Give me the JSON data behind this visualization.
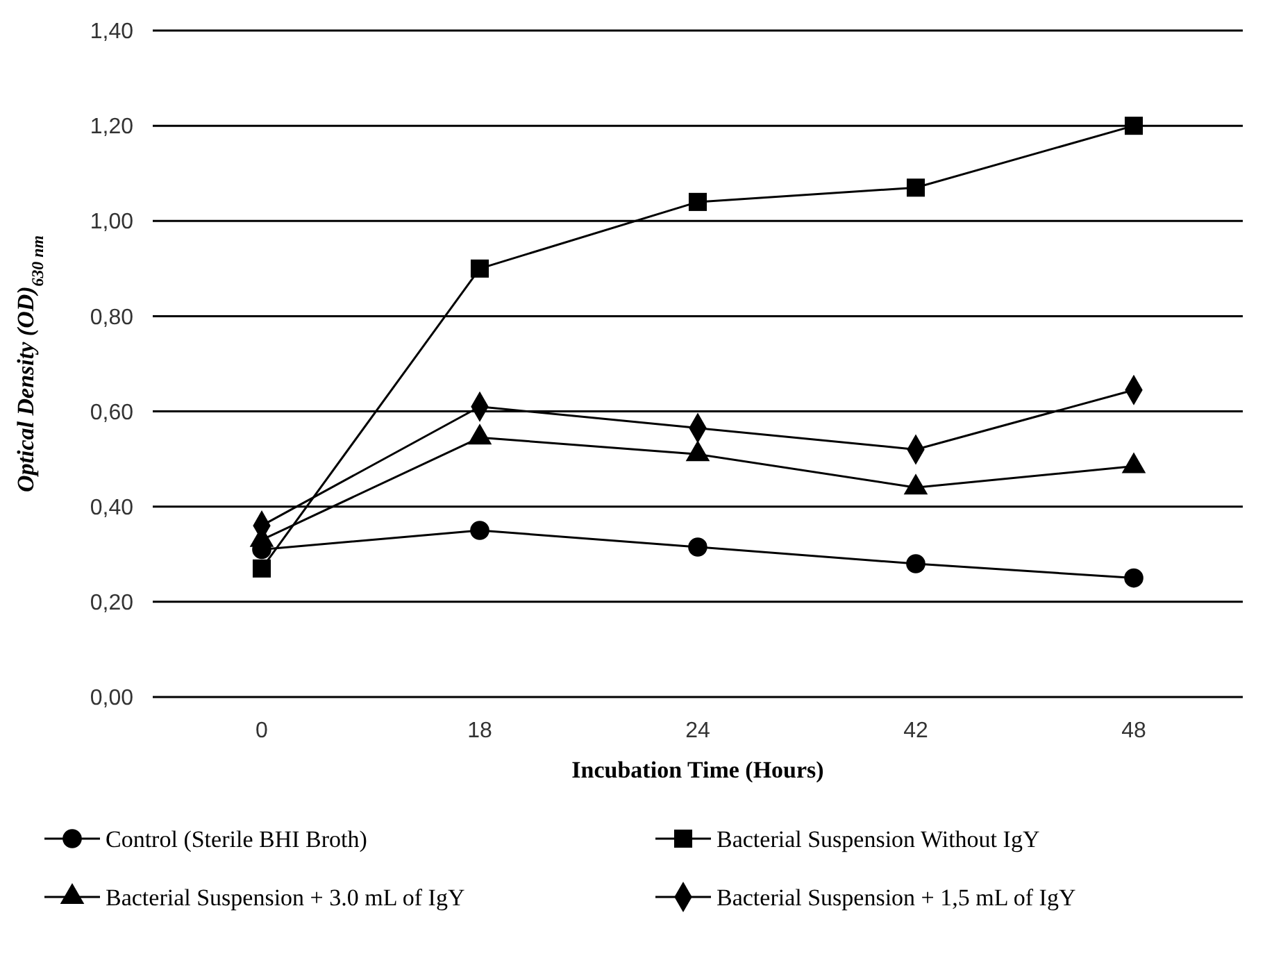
{
  "chart_data": {
    "type": "line",
    "xlabel": "Incubation Time (Hours)",
    "ylabel": "Optical Density (OD)$_{630 nm}$",
    "categories": [
      "0",
      "18",
      "24",
      "42",
      "48"
    ],
    "ylim": [
      0,
      1.4
    ],
    "yticks": [
      {
        "value": 0,
        "label": "0,00"
      },
      {
        "value": 0.2,
        "label": "0,20"
      },
      {
        "value": 0.4,
        "label": "0,40"
      },
      {
        "value": 0.6,
        "label": "0,60"
      },
      {
        "value": 0.8,
        "label": "0,80"
      },
      {
        "value": 1.0,
        "label": "1,00"
      },
      {
        "value": 1.2,
        "label": "1,20"
      },
      {
        "value": 1.4,
        "label": "1,40"
      }
    ],
    "grid": "y",
    "legend": "bottom",
    "line_style": "solid",
    "series": [
      {
        "name": "Control (Sterile BHI Broth)",
        "color": "#000000",
        "marker": "circle",
        "values": [
          0.31,
          0.35,
          0.315,
          0.28,
          0.25
        ]
      },
      {
        "name": "Bacterial Suspension Without IgY",
        "color": "#000000",
        "marker": "square",
        "values": [
          0.27,
          0.9,
          1.04,
          1.07,
          1.2
        ]
      },
      {
        "name": "Bacterial Suspension + 3.0 mL of IgY",
        "color": "#000000",
        "marker": "triangle",
        "values": [
          0.33,
          0.545,
          0.51,
          0.44,
          0.485
        ]
      },
      {
        "name": "Bacterial Suspension + 1,5 mL of IgY",
        "color": "#000000",
        "marker": "diamond",
        "values": [
          0.36,
          0.61,
          0.565,
          0.52,
          0.645
        ]
      }
    ]
  }
}
